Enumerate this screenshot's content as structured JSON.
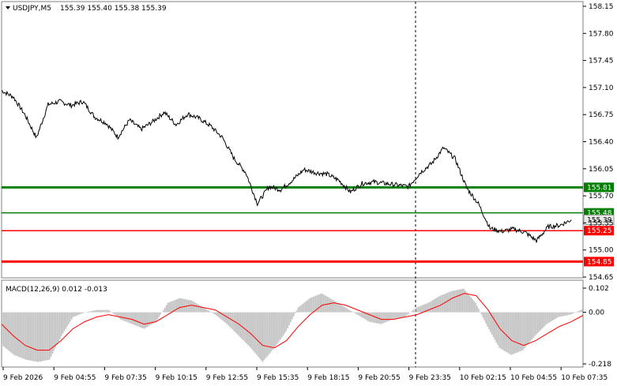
{
  "header": {
    "symbol_label": "USDJPY,M5",
    "ohlc": "155.39 155.40 155.38 155.39"
  },
  "macd": {
    "label": "MACD(12,26,9) 0.012 -0.013",
    "ticks": [
      "0.102",
      "0.00",
      "-0.218"
    ]
  },
  "price_axis": {
    "ticks": [
      "158.15",
      "157.80",
      "157.45",
      "157.10",
      "156.75",
      "156.40",
      "156.05",
      "155.70",
      "155.35",
      "155.00",
      "154.65"
    ]
  },
  "time_axis": {
    "labels": [
      "9 Feb 2026",
      "9 Feb 04:55",
      "9 Feb 07:35",
      "9 Feb 10:15",
      "9 Feb 12:55",
      "9 Feb 15:35",
      "9 Feb 18:15",
      "9 Feb 20:55",
      "9 Feb 23:35",
      "10 Feb 02:15",
      "10 Feb 04:55",
      "10 Feb 07:35"
    ]
  },
  "levels": [
    {
      "value": 155.81,
      "label": "155.81",
      "color": "#008000",
      "thick": true
    },
    {
      "value": 155.48,
      "label": "155.48",
      "color": "#008000",
      "thick": false
    },
    {
      "value": 155.25,
      "label": "155.25",
      "color": "#ff0000",
      "thick": false
    },
    {
      "value": 154.85,
      "label": "154.85",
      "color": "#ff0000",
      "thick": true
    }
  ],
  "current_price": {
    "value": 155.39,
    "label": "155.39"
  },
  "colors": {
    "line": "#000000",
    "histogram": "#c0c0c0",
    "signal": "#ff0000",
    "grid": "#c8c8c8",
    "frame": "#808080",
    "price_tag": "#e8e8e8"
  },
  "chart_data": {
    "type": "line",
    "price_series": [
      [
        0,
        157.06
      ],
      [
        0.02,
        156.98
      ],
      [
        0.04,
        156.75
      ],
      [
        0.06,
        156.45
      ],
      [
        0.08,
        156.88
      ],
      [
        0.1,
        156.92
      ],
      [
        0.12,
        156.87
      ],
      [
        0.14,
        156.92
      ],
      [
        0.16,
        156.72
      ],
      [
        0.18,
        156.64
      ],
      [
        0.2,
        156.46
      ],
      [
        0.22,
        156.68
      ],
      [
        0.24,
        156.56
      ],
      [
        0.26,
        156.66
      ],
      [
        0.28,
        156.78
      ],
      [
        0.3,
        156.62
      ],
      [
        0.32,
        156.76
      ],
      [
        0.34,
        156.7
      ],
      [
        0.36,
        156.6
      ],
      [
        0.38,
        156.45
      ],
      [
        0.4,
        156.18
      ],
      [
        0.42,
        156.0
      ],
      [
        0.44,
        155.6
      ],
      [
        0.46,
        155.82
      ],
      [
        0.48,
        155.78
      ],
      [
        0.5,
        155.9
      ],
      [
        0.52,
        156.04
      ],
      [
        0.54,
        156.0
      ],
      [
        0.56,
        155.98
      ],
      [
        0.58,
        155.9
      ],
      [
        0.6,
        155.75
      ],
      [
        0.62,
        155.86
      ],
      [
        0.64,
        155.88
      ],
      [
        0.66,
        155.86
      ],
      [
        0.68,
        155.84
      ],
      [
        0.7,
        155.82
      ],
      [
        0.72,
        156.0
      ],
      [
        0.74,
        156.12
      ],
      [
        0.76,
        156.32
      ],
      [
        0.78,
        156.18
      ],
      [
        0.8,
        155.8
      ],
      [
        0.82,
        155.6
      ],
      [
        0.84,
        155.28
      ],
      [
        0.86,
        155.24
      ],
      [
        0.88,
        155.27
      ],
      [
        0.9,
        155.23
      ],
      [
        0.92,
        155.12
      ],
      [
        0.94,
        155.3
      ],
      [
        0.96,
        155.32
      ],
      [
        0.98,
        155.39
      ]
    ],
    "macd_histogram": [
      -0.14,
      -0.18,
      -0.2,
      -0.21,
      -0.2,
      -0.1,
      -0.02,
      0.0,
      0.01,
      0.01,
      -0.03,
      -0.05,
      -0.07,
      -0.04,
      0.04,
      0.06,
      0.05,
      0.02,
      -0.01,
      -0.05,
      -0.1,
      -0.15,
      -0.21,
      -0.15,
      -0.08,
      0.02,
      0.06,
      0.08,
      0.05,
      0.02,
      -0.01,
      -0.04,
      -0.05,
      -0.03,
      -0.02,
      0.02,
      0.04,
      0.07,
      0.09,
      0.1,
      0.04,
      -0.06,
      -0.15,
      -0.18,
      -0.16,
      -0.1,
      -0.05,
      -0.02,
      -0.01,
      0.012
    ],
    "macd_signal": [
      -0.05,
      -0.1,
      -0.14,
      -0.16,
      -0.16,
      -0.12,
      -0.07,
      -0.04,
      -0.02,
      -0.01,
      -0.02,
      -0.03,
      -0.05,
      -0.04,
      -0.01,
      0.02,
      0.03,
      0.02,
      0.01,
      -0.02,
      -0.05,
      -0.09,
      -0.14,
      -0.15,
      -0.12,
      -0.06,
      -0.01,
      0.03,
      0.04,
      0.03,
      0.01,
      -0.01,
      -0.03,
      -0.03,
      -0.02,
      -0.01,
      0.01,
      0.03,
      0.06,
      0.08,
      0.07,
      0.01,
      -0.07,
      -0.12,
      -0.14,
      -0.12,
      -0.09,
      -0.06,
      -0.04,
      -0.013
    ]
  }
}
